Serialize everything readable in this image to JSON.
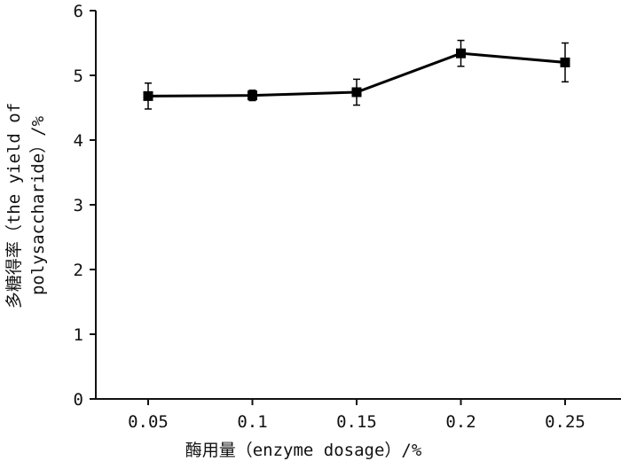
{
  "chart_data": {
    "type": "line",
    "categories": [
      "0.05",
      "0.1",
      "0.15",
      "0.2",
      "0.25"
    ],
    "series": [
      {
        "values": [
          4.68,
          4.69,
          4.74,
          5.34,
          5.2
        ],
        "error": [
          0.2,
          0.08,
          0.2,
          0.2,
          0.3
        ]
      }
    ],
    "ylim": [
      0,
      6
    ],
    "yticks": [
      "0",
      "1",
      "2",
      "3",
      "4",
      "5",
      "6"
    ],
    "xlabel": "酶用量（enzyme dosage）/%",
    "ylabel_line1": "多糖得率（the yield of",
    "ylabel_line2": "polysaccharide）/%",
    "grid": false,
    "legend": "none"
  }
}
